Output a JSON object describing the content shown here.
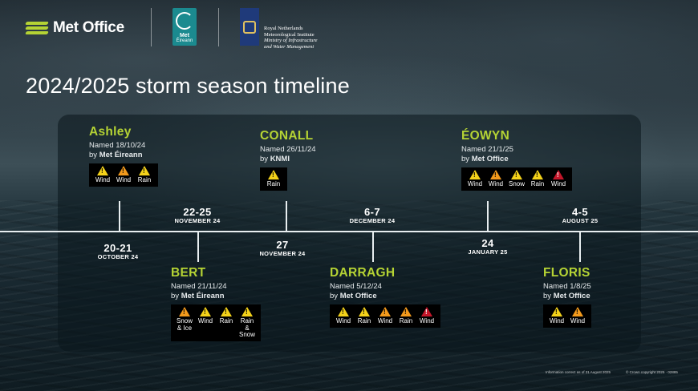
{
  "header": {
    "met_office": "Met Office",
    "met_eireann_line1": "Met",
    "met_eireann_line2": "Éireann",
    "knmi_lines": [
      "Royal Netherlands",
      "Meteorological Institute",
      "Ministry of Infrastructure",
      "and Water Management"
    ],
    "title": "2024/2025 storm season timeline"
  },
  "storms": [
    {
      "name": "Ashley",
      "named": "Named 18/10/24",
      "by_prefix": "by ",
      "by": "Met Éireann",
      "warnings": [
        {
          "level": "yellow",
          "label": "Wind"
        },
        {
          "level": "amber",
          "label": "Wind"
        },
        {
          "level": "yellow",
          "label": "Rain"
        }
      ]
    },
    {
      "name": "BERT",
      "named": "Named 21/11/24",
      "by_prefix": "by ",
      "by": "Met Éireann",
      "warnings": [
        {
          "level": "amber",
          "label": "Snow & Ice"
        },
        {
          "level": "yellow",
          "label": "Wind"
        },
        {
          "level": "yellow",
          "label": "Rain"
        },
        {
          "level": "yellow",
          "label": "Rain & Snow"
        }
      ]
    },
    {
      "name": "CONALL",
      "named": "Named 26/11/24",
      "by_prefix": "by ",
      "by": "KNMI",
      "warnings": [
        {
          "level": "yellow",
          "label": "Rain"
        }
      ]
    },
    {
      "name": "DARRAGH",
      "named": "Named 5/12/24",
      "by_prefix": "by ",
      "by": "Met Office",
      "warnings": [
        {
          "level": "yellow",
          "label": "Wind"
        },
        {
          "level": "yellow",
          "label": "Rain"
        },
        {
          "level": "amber",
          "label": "Wind"
        },
        {
          "level": "amber",
          "label": "Rain"
        },
        {
          "level": "red",
          "label": "Wind"
        }
      ]
    },
    {
      "name": "ÉOWYN",
      "named": "Named 21/1/25",
      "by_prefix": "by ",
      "by": "Met Office",
      "warnings": [
        {
          "level": "yellow",
          "label": "Wind"
        },
        {
          "level": "amber",
          "label": "Wind"
        },
        {
          "level": "yellow",
          "label": "Snow"
        },
        {
          "level": "yellow",
          "label": "Rain"
        },
        {
          "level": "red",
          "label": "Wind"
        }
      ]
    },
    {
      "name": "FLORIS",
      "named": "Named 1/8/25",
      "by_prefix": "by ",
      "by": "Met Office",
      "warnings": [
        {
          "level": "yellow",
          "label": "Wind"
        },
        {
          "level": "amber",
          "label": "Wind"
        }
      ]
    }
  ],
  "dates": [
    {
      "day": "20-21",
      "month": "OCTOBER 24"
    },
    {
      "day": "22-25",
      "month": "NOVEMBER 24"
    },
    {
      "day": "27",
      "month": "NOVEMBER 24"
    },
    {
      "day": "6-7",
      "month": "DECEMBER 24"
    },
    {
      "day": "24",
      "month": "JANUARY 25"
    },
    {
      "day": "4-5",
      "month": "AUGUST 25"
    }
  ],
  "footer": {
    "info": "Information correct as of 31 August 2025",
    "copyright": "© Crown copyright 2025 · 02885"
  }
}
